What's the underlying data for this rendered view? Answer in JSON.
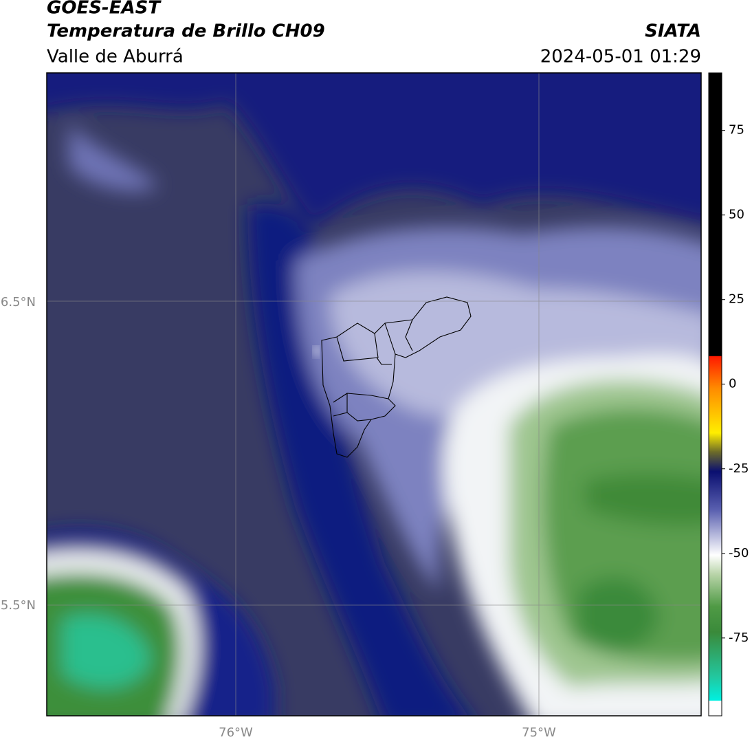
{
  "header": {
    "title": "GOES-EAST",
    "subtitle": "Temperatura de Brillo CH09",
    "region": "Valle de Aburrá",
    "source": "SIATA",
    "datetime": "2024-05-01 01:29"
  },
  "map": {
    "lat_labels": [
      "6.5°N",
      "5.5°N"
    ],
    "lon_labels": [
      "76°W",
      "75°W"
    ]
  },
  "colorbar": {
    "lim": [
      -98,
      92
    ],
    "ticks": [
      75,
      50,
      25,
      0,
      -25,
      -50,
      -75
    ]
  }
}
